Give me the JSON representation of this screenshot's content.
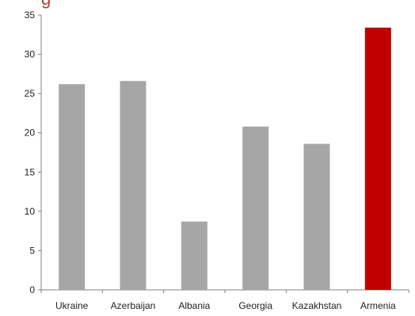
{
  "title_fragment": "g",
  "chart_data": {
    "type": "bar",
    "title": "",
    "xlabel": "",
    "ylabel": "",
    "categories": [
      "Ukraine",
      "Azerbaijan",
      "Albania",
      "Georgia",
      "Kazakhstan",
      "Armenia"
    ],
    "values": [
      26.2,
      26.6,
      8.7,
      20.8,
      18.6,
      33.4
    ],
    "highlight_index": 5,
    "ylim": [
      0,
      35
    ],
    "yticks": [
      0,
      5,
      10,
      15,
      20,
      25,
      30,
      35
    ],
    "grid": false,
    "colors": {
      "bar": "#a6a6a6",
      "highlight": "#c00000",
      "title": "#c0392b",
      "axis": "#808080"
    }
  }
}
